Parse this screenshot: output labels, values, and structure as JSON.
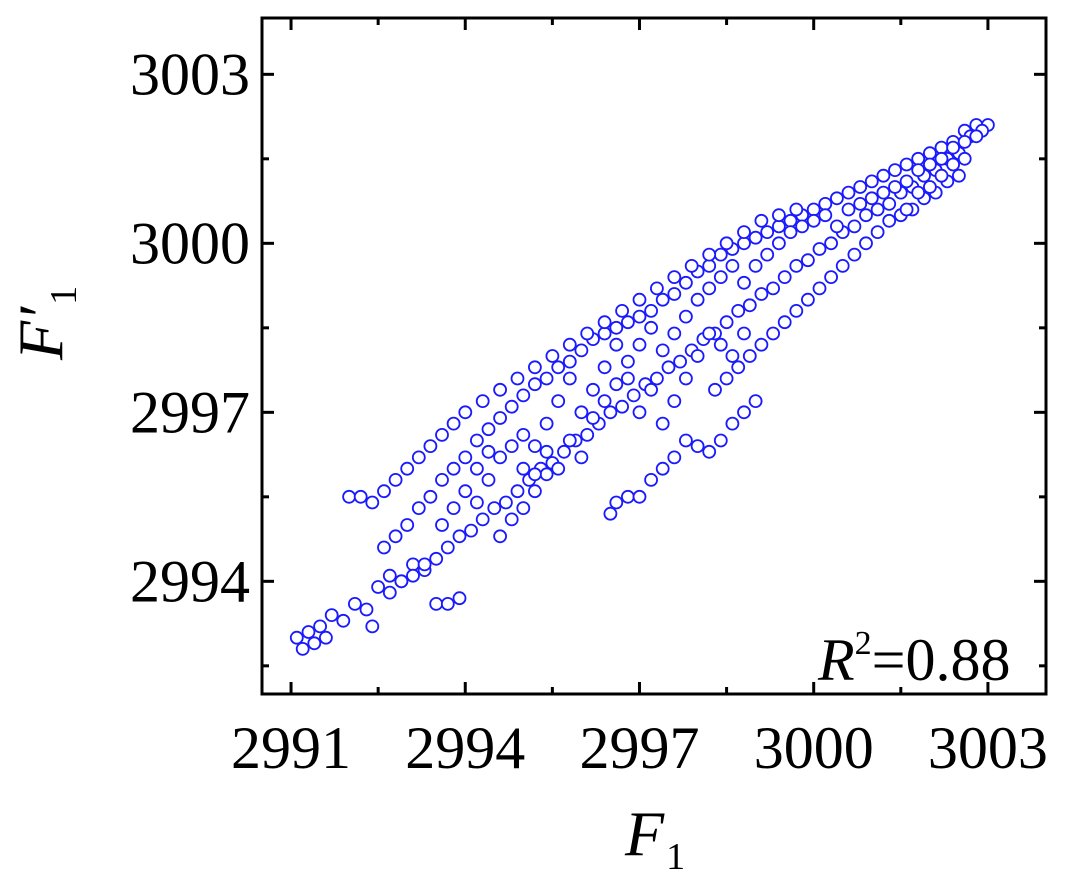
{
  "chart_data": {
    "type": "scatter",
    "xlabel": {
      "main": "F",
      "sub": "1"
    },
    "ylabel": {
      "main": "F′",
      "sub": "1"
    },
    "xlim": [
      2990.5,
      3004.0
    ],
    "ylim": [
      2992.0,
      3004.0
    ],
    "xticks": [
      2991,
      2994,
      2997,
      3000,
      3003
    ],
    "yticks": [
      2994,
      2997,
      3000,
      3003
    ],
    "xtick_labels": [
      "2991",
      "2994",
      "2997",
      "3000",
      "3003"
    ],
    "ytick_labels": [
      "2994",
      "2997",
      "3000",
      "3003"
    ],
    "annotation": {
      "base": "R",
      "sup": "2",
      "rest": "=0.88"
    },
    "grid": false,
    "marker": "open-circle",
    "color": "#1a1aff",
    "points": [
      [
        2991.1,
        2993.0
      ],
      [
        2991.2,
        2992.8
      ],
      [
        2991.3,
        2993.1
      ],
      [
        2991.4,
        2992.9
      ],
      [
        2991.5,
        2993.2
      ],
      [
        2991.6,
        2993.0
      ],
      [
        2991.7,
        2993.4
      ],
      [
        2991.9,
        2993.3
      ],
      [
        2992.1,
        2993.6
      ],
      [
        2992.3,
        2993.5
      ],
      [
        2992.5,
        2993.9
      ],
      [
        2992.4,
        2993.2
      ],
      [
        2992.7,
        2994.1
      ],
      [
        2992.9,
        2994.0
      ],
      [
        2993.1,
        2994.3
      ],
      [
        2993.3,
        2994.2
      ],
      [
        2993.5,
        2993.6
      ],
      [
        2993.7,
        2993.6
      ],
      [
        2993.9,
        2993.7
      ],
      [
        2992.6,
        2994.6
      ],
      [
        2992.8,
        2994.8
      ],
      [
        2993.0,
        2995.0
      ],
      [
        2993.2,
        2995.3
      ],
      [
        2993.4,
        2995.5
      ],
      [
        2993.6,
        2995.8
      ],
      [
        2993.8,
        2996.0
      ],
      [
        2994.0,
        2996.2
      ],
      [
        2994.2,
        2996.5
      ],
      [
        2994.4,
        2996.7
      ],
      [
        2994.6,
        2996.9
      ],
      [
        2994.8,
        2997.1
      ],
      [
        2995.0,
        2997.3
      ],
      [
        2995.2,
        2997.5
      ],
      [
        2995.4,
        2997.6
      ],
      [
        2995.6,
        2997.8
      ],
      [
        2995.8,
        2997.9
      ],
      [
        2996.0,
        2998.1
      ],
      [
        2996.2,
        2998.3
      ],
      [
        2996.4,
        2998.4
      ],
      [
        2996.6,
        2998.5
      ],
      [
        2996.8,
        2998.6
      ],
      [
        2997.0,
        2998.7
      ],
      [
        2997.2,
        2998.8
      ],
      [
        2997.4,
        2999.0
      ],
      [
        2997.6,
        2999.1
      ],
      [
        2997.8,
        2999.3
      ],
      [
        2998.0,
        2999.5
      ],
      [
        2998.2,
        2999.6
      ],
      [
        2998.4,
        2999.8
      ],
      [
        2998.6,
        2999.9
      ],
      [
        2998.8,
        3000.0
      ],
      [
        2999.0,
        3000.1
      ],
      [
        2999.2,
        3000.2
      ],
      [
        2999.4,
        3000.3
      ],
      [
        2999.6,
        3000.4
      ],
      [
        2999.8,
        3000.5
      ],
      [
        3000.0,
        3000.6
      ],
      [
        3000.2,
        3000.7
      ],
      [
        3000.4,
        3000.8
      ],
      [
        3000.6,
        3000.9
      ],
      [
        3000.8,
        3001.0
      ],
      [
        3001.0,
        3001.1
      ],
      [
        3001.2,
        3001.2
      ],
      [
        3001.4,
        3001.3
      ],
      [
        3001.6,
        3001.4
      ],
      [
        3001.8,
        3001.5
      ],
      [
        3002.0,
        3001.6
      ],
      [
        3002.2,
        3001.7
      ],
      [
        3002.4,
        3001.8
      ],
      [
        3002.6,
        3002.0
      ],
      [
        3002.8,
        3002.1
      ],
      [
        3003.0,
        3002.1
      ],
      [
        3002.9,
        3002.0
      ],
      [
        3002.7,
        3001.9
      ],
      [
        3002.5,
        3001.6
      ],
      [
        3002.3,
        3001.5
      ],
      [
        3002.1,
        3001.3
      ],
      [
        3001.9,
        3001.2
      ],
      [
        3001.7,
        3001.0
      ],
      [
        3001.5,
        3000.9
      ],
      [
        3001.3,
        3000.7
      ],
      [
        3001.1,
        3000.6
      ],
      [
        3000.9,
        3000.5
      ],
      [
        3000.7,
        3000.3
      ],
      [
        3000.5,
        3000.2
      ],
      [
        3000.3,
        3000.0
      ],
      [
        3000.1,
        2999.9
      ],
      [
        2999.9,
        2999.7
      ],
      [
        2999.7,
        2999.6
      ],
      [
        2999.5,
        2999.4
      ],
      [
        2999.3,
        2999.2
      ],
      [
        2999.1,
        2999.1
      ],
      [
        2998.9,
        2998.9
      ],
      [
        2998.7,
        2998.8
      ],
      [
        2998.5,
        2998.6
      ],
      [
        2998.3,
        2998.4
      ],
      [
        2998.1,
        2998.3
      ],
      [
        2997.9,
        2998.1
      ],
      [
        2997.7,
        2997.9
      ],
      [
        2997.5,
        2997.8
      ],
      [
        2997.3,
        2997.6
      ],
      [
        2997.1,
        2997.5
      ],
      [
        2996.9,
        2997.3
      ],
      [
        2996.7,
        2997.1
      ],
      [
        2996.5,
        2997.0
      ],
      [
        2996.3,
        2996.8
      ],
      [
        2996.1,
        2996.6
      ],
      [
        2995.9,
        2996.5
      ],
      [
        2995.7,
        2996.3
      ],
      [
        2995.5,
        2996.1
      ],
      [
        2995.3,
        2996.0
      ],
      [
        2995.1,
        2995.8
      ],
      [
        2994.9,
        2995.6
      ],
      [
        2994.7,
        2995.4
      ],
      [
        2994.5,
        2995.3
      ],
      [
        2994.3,
        2995.1
      ],
      [
        2994.1,
        2994.9
      ],
      [
        2993.9,
        2994.8
      ],
      [
        2993.7,
        2994.6
      ],
      [
        2993.5,
        2994.4
      ],
      [
        2993.3,
        2994.3
      ],
      [
        2993.1,
        2994.1
      ],
      [
        2992.9,
        2994.0
      ],
      [
        2992.7,
        2993.8
      ],
      [
        2996.5,
        2995.2
      ],
      [
        2996.6,
        2995.4
      ],
      [
        2996.8,
        2995.5
      ],
      [
        2997.0,
        2995.5
      ],
      [
        2997.2,
        2995.8
      ],
      [
        2997.4,
        2996.0
      ],
      [
        2997.6,
        2996.2
      ],
      [
        2997.8,
        2996.5
      ],
      [
        2998.0,
        2996.4
      ],
      [
        2998.2,
        2996.3
      ],
      [
        2998.4,
        2996.5
      ],
      [
        2998.6,
        2996.8
      ],
      [
        2998.8,
        2997.0
      ],
      [
        2999.0,
        2997.2
      ],
      [
        2998.3,
        2997.4
      ],
      [
        2998.5,
        2997.6
      ],
      [
        2998.7,
        2997.8
      ],
      [
        2998.9,
        2998.0
      ],
      [
        2999.1,
        2998.2
      ],
      [
        2999.3,
        2998.4
      ],
      [
        2999.5,
        2998.6
      ],
      [
        2999.7,
        2998.8
      ],
      [
        2999.9,
        2999.0
      ],
      [
        3000.1,
        2999.2
      ],
      [
        3000.3,
        2999.4
      ],
      [
        3000.5,
        2999.6
      ],
      [
        3000.7,
        2999.8
      ],
      [
        3000.9,
        3000.0
      ],
      [
        3001.1,
        3000.2
      ],
      [
        3001.3,
        3000.4
      ],
      [
        3001.5,
        3000.5
      ],
      [
        3001.7,
        3000.6
      ],
      [
        3001.9,
        3000.8
      ],
      [
        3002.1,
        3000.9
      ],
      [
        3002.3,
        3001.1
      ],
      [
        3002.5,
        3001.2
      ],
      [
        2992.0,
        2995.5
      ],
      [
        2992.2,
        2995.5
      ],
      [
        2992.4,
        2995.4
      ],
      [
        2992.6,
        2995.6
      ],
      [
        2992.8,
        2995.8
      ],
      [
        2993.0,
        2996.0
      ],
      [
        2993.2,
        2996.2
      ],
      [
        2993.4,
        2996.4
      ],
      [
        2993.6,
        2996.6
      ],
      [
        2993.8,
        2996.8
      ],
      [
        2994.0,
        2997.0
      ],
      [
        2994.3,
        2997.2
      ],
      [
        2994.6,
        2997.4
      ],
      [
        2994.9,
        2997.6
      ],
      [
        2995.2,
        2997.8
      ],
      [
        2995.5,
        2998.0
      ],
      [
        2995.8,
        2998.2
      ],
      [
        2996.1,
        2998.4
      ],
      [
        2996.4,
        2998.6
      ],
      [
        2996.7,
        2998.8
      ],
      [
        2997.0,
        2999.0
      ],
      [
        2997.3,
        2999.2
      ],
      [
        2997.6,
        2999.4
      ],
      [
        2997.9,
        2999.6
      ],
      [
        2998.2,
        2999.8
      ],
      [
        2998.5,
        3000.0
      ],
      [
        2998.8,
        3000.2
      ],
      [
        2999.1,
        3000.4
      ],
      [
        2999.4,
        3000.5
      ],
      [
        2999.7,
        3000.6
      ],
      [
        2995.0,
        2996.0
      ],
      [
        2995.2,
        2996.4
      ],
      [
        2995.4,
        2996.8
      ],
      [
        2995.6,
        2997.2
      ],
      [
        2995.8,
        2997.6
      ],
      [
        2996.0,
        2997.0
      ],
      [
        2996.2,
        2997.4
      ],
      [
        2996.4,
        2997.8
      ],
      [
        2996.6,
        2998.2
      ],
      [
        2996.8,
        2997.6
      ],
      [
        2997.0,
        2997.0
      ],
      [
        2997.2,
        2997.4
      ],
      [
        2997.4,
        2996.8
      ],
      [
        2997.6,
        2997.2
      ],
      [
        2997.8,
        2997.6
      ],
      [
        2998.0,
        2998.0
      ],
      [
        2998.2,
        2998.4
      ],
      [
        2998.4,
        2998.2
      ],
      [
        2998.6,
        2998.0
      ],
      [
        2998.8,
        2998.4
      ],
      [
        2994.2,
        2995.4
      ],
      [
        2994.4,
        2995.8
      ],
      [
        2994.6,
        2996.2
      ],
      [
        2994.8,
        2996.4
      ],
      [
        2995.0,
        2996.6
      ],
      [
        2995.2,
        2995.6
      ],
      [
        2995.4,
        2995.9
      ],
      [
        2995.6,
        2996.0
      ],
      [
        2995.8,
        2996.5
      ],
      [
        2996.0,
        2996.2
      ],
      [
        2993.6,
        2995.0
      ],
      [
        2993.8,
        2995.3
      ],
      [
        2994.0,
        2995.6
      ],
      [
        2994.2,
        2996.0
      ],
      [
        2994.4,
        2996.3
      ],
      [
        2994.6,
        2994.8
      ],
      [
        2994.8,
        2995.1
      ],
      [
        2995.0,
        2995.3
      ],
      [
        2995.2,
        2995.9
      ],
      [
        2995.4,
        2996.3
      ],
      [
        2996.2,
        2996.9
      ],
      [
        2996.4,
        2997.2
      ],
      [
        2996.6,
        2997.5
      ],
      [
        2996.8,
        2997.9
      ],
      [
        2997.0,
        2998.2
      ],
      [
        2997.2,
        2998.5
      ],
      [
        2997.4,
        2998.1
      ],
      [
        2997.6,
        2998.4
      ],
      [
        2997.8,
        2998.7
      ],
      [
        2998.0,
        2999.0
      ],
      [
        2998.2,
        2999.2
      ],
      [
        2998.4,
        2999.4
      ],
      [
        2998.6,
        2999.6
      ],
      [
        2998.8,
        2999.3
      ],
      [
        2999.0,
        2999.6
      ],
      [
        2999.2,
        2999.8
      ],
      [
        2999.4,
        3000.0
      ],
      [
        2999.6,
        3000.2
      ],
      [
        2999.8,
        3000.3
      ],
      [
        3000.0,
        3000.4
      ],
      [
        3000.2,
        3000.5
      ],
      [
        3000.4,
        3000.3
      ],
      [
        3000.6,
        3000.6
      ],
      [
        3000.8,
        3000.7
      ],
      [
        3001.0,
        3000.8
      ],
      [
        3001.2,
        3000.9
      ],
      [
        3001.4,
        3001.0
      ],
      [
        3001.6,
        3001.1
      ],
      [
        3001.8,
        3001.3
      ],
      [
        3002.0,
        3001.4
      ],
      [
        3002.2,
        3001.5
      ],
      [
        3002.4,
        3001.7
      ],
      [
        3002.6,
        3001.8
      ],
      [
        3002.8,
        3001.9
      ],
      [
        3001.6,
        3000.6
      ],
      [
        3001.8,
        3000.9
      ],
      [
        3002.0,
        3001.0
      ],
      [
        3002.2,
        3001.2
      ],
      [
        3002.4,
        3001.4
      ],
      [
        3002.6,
        3001.5
      ]
    ]
  }
}
